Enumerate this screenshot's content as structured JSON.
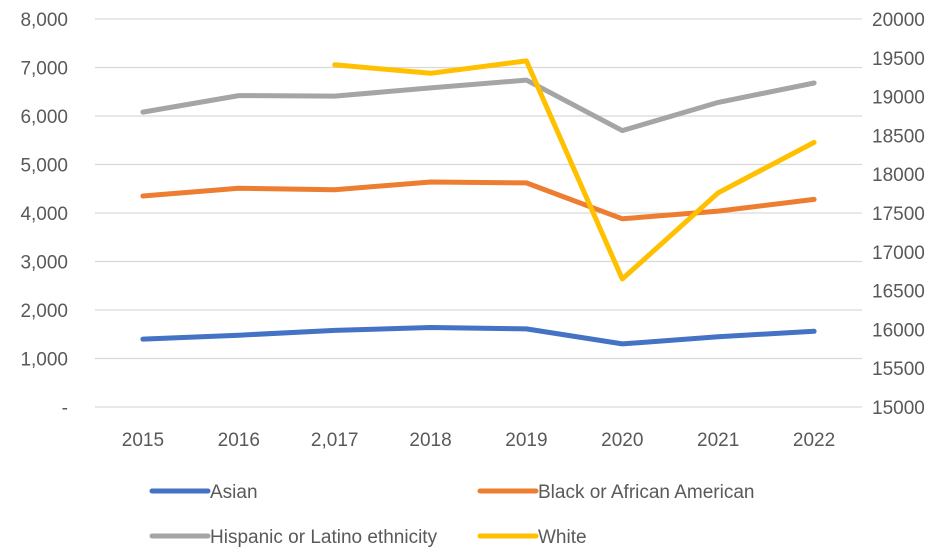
{
  "chart_data": {
    "type": "line",
    "categories": [
      "2015",
      "2016",
      "2,017",
      "2018",
      "2019",
      "2020",
      "2021",
      "2022"
    ],
    "y_left": {
      "ticks": [
        0,
        1000,
        2000,
        3000,
        4000,
        5000,
        6000,
        7000,
        8000
      ],
      "tick_labels": [
        "-",
        "1,000",
        "2,000",
        "3,000",
        "4,000",
        "5,000",
        "6,000",
        "7,000",
        "8,000"
      ],
      "range": [
        0,
        8000
      ]
    },
    "y_right": {
      "ticks": [
        15000,
        15500,
        16000,
        16500,
        17000,
        17500,
        18000,
        18500,
        19000,
        19500,
        20000
      ],
      "tick_labels": [
        "15000",
        "15500",
        "16000",
        "16500",
        "17000",
        "17500",
        "18000",
        "18500",
        "19000",
        "19500",
        "20000"
      ],
      "range": [
        15000,
        20000
      ]
    },
    "grid": true,
    "legend_position": "bottom",
    "series": [
      {
        "name": "Asian",
        "axis": "left",
        "color": "#4472C4",
        "values": [
          1400,
          1480,
          1580,
          1640,
          1610,
          1300,
          1450,
          1560
        ]
      },
      {
        "name": "Black or African American",
        "axis": "left",
        "color": "#ED7D31",
        "values": [
          4350,
          4510,
          4480,
          4640,
          4620,
          3880,
          4040,
          4280
        ]
      },
      {
        "name": "Hispanic or Latino ethnicity",
        "axis": "left",
        "color": "#A5A5A5",
        "values": [
          6080,
          6420,
          6410,
          6580,
          6740,
          5700,
          6280,
          6680
        ]
      },
      {
        "name": "White",
        "axis": "right",
        "color": "#FFC000",
        "values": [
          null,
          null,
          19410,
          19300,
          19460,
          16650,
          17760,
          18410
        ]
      }
    ]
  }
}
